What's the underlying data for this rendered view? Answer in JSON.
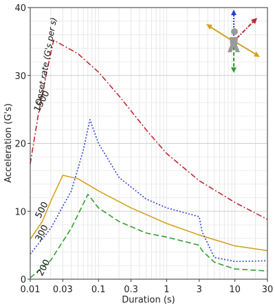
{
  "chart_data": {
    "type": "line",
    "xscale": "log",
    "xlim": [
      0.01,
      30
    ],
    "ylim": [
      0,
      40
    ],
    "xlabel": "Duration (s)",
    "ylabel": "Acceleration (G's)",
    "x_ticks": [
      0.01,
      0.03,
      0.1,
      0.3,
      1,
      3,
      10,
      30
    ],
    "x_tick_labels": [
      "0.01",
      "0.03",
      "0.1",
      "0.3",
      "1",
      "3",
      "10",
      "30"
    ],
    "y_ticks": [
      0,
      10,
      20,
      30,
      40
    ],
    "y_tick_labels": [
      "0",
      "10",
      "20",
      "30",
      "40"
    ],
    "grid": true,
    "annotation": "Onset rate (G's per s)",
    "series": [
      {
        "name": "1500",
        "color": "#c0272d",
        "style": "dash-dot",
        "points": [
          [
            0.01,
            17
          ],
          [
            0.013,
            24
          ],
          [
            0.017,
            30
          ],
          [
            0.022,
            35.2
          ],
          [
            0.05,
            33.2
          ],
          [
            0.1,
            30.5
          ],
          [
            0.2,
            27
          ],
          [
            0.5,
            22
          ],
          [
            1,
            18.5
          ],
          [
            3,
            14.5
          ],
          [
            10,
            11.3
          ],
          [
            30,
            8.8
          ]
        ]
      },
      {
        "name": "500",
        "color": "#d4a21f",
        "style": "solid",
        "points": [
          [
            0.01,
            5.9
          ],
          [
            0.015,
            8.5
          ],
          [
            0.02,
            11.5
          ],
          [
            0.03,
            15.3
          ],
          [
            0.05,
            14.8
          ],
          [
            0.1,
            13
          ],
          [
            0.3,
            10.5
          ],
          [
            1,
            8.2
          ],
          [
            3,
            6.5
          ],
          [
            10,
            4.9
          ],
          [
            30,
            4.2
          ]
        ]
      },
      {
        "name": "300",
        "color": "#2a3fd1",
        "style": "dotted",
        "points": [
          [
            0.01,
            3.7
          ],
          [
            0.02,
            7.5
          ],
          [
            0.04,
            13
          ],
          [
            0.06,
            19
          ],
          [
            0.075,
            23.5
          ],
          [
            0.1,
            20
          ],
          [
            0.2,
            15
          ],
          [
            0.5,
            11.8
          ],
          [
            1,
            10.5
          ],
          [
            3,
            9.2
          ],
          [
            3.3,
            7
          ],
          [
            5,
            3.2
          ],
          [
            10,
            2.6
          ],
          [
            30,
            2.7
          ]
        ]
      },
      {
        "name": "200",
        "color": "#2ea02e",
        "style": "dashed",
        "points": [
          [
            0.01,
            0.2
          ],
          [
            0.02,
            2.8
          ],
          [
            0.04,
            7.5
          ],
          [
            0.07,
            12.5
          ],
          [
            0.1,
            10.5
          ],
          [
            0.2,
            8.5
          ],
          [
            0.5,
            6.8
          ],
          [
            1,
            6.2
          ],
          [
            3,
            5
          ],
          [
            3.3,
            4.2
          ],
          [
            5,
            2.5
          ],
          [
            10,
            1.5
          ],
          [
            30,
            1.2
          ]
        ]
      }
    ],
    "curve_labels": [
      {
        "text": "1500",
        "x": 0.016,
        "y": 26
      },
      {
        "text": "500",
        "x": 0.016,
        "y": 10
      },
      {
        "text": "300",
        "x": 0.016,
        "y": 6.6
      },
      {
        "text": "200",
        "x": 0.017,
        "y": 1.5
      }
    ],
    "icon": "person-axes-icon"
  }
}
